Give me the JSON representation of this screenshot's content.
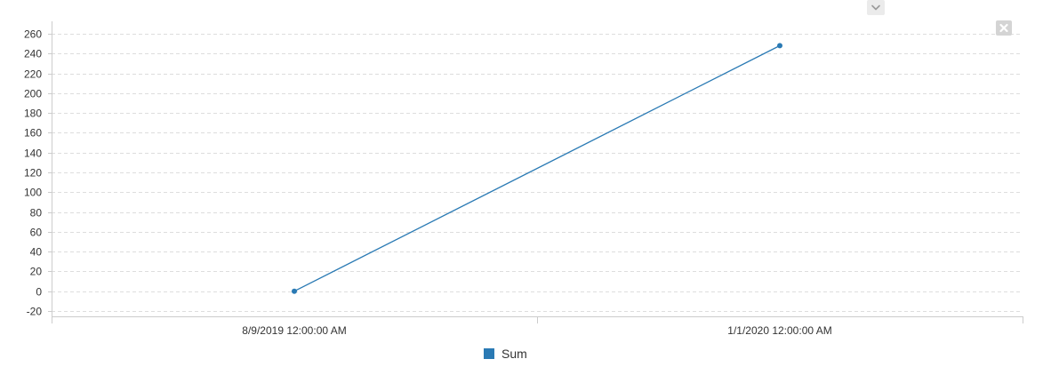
{
  "controls": {
    "collapse_icon": "chevron-down-icon",
    "close_icon": "close-icon"
  },
  "colors": {
    "series": "#2a7ab4",
    "grid": "#dddddd",
    "axis": "#cccccc",
    "text": "#333333",
    "button_bg": "#ebebeb"
  },
  "chart_data": {
    "type": "line",
    "title": "",
    "xlabel": "",
    "ylabel": "",
    "grid": true,
    "legend_position": "bottom-center",
    "categories": [
      "8/9/2019 12:00:00 AM",
      "1/1/2020 12:00:00 AM"
    ],
    "ylim": [
      -20,
      260
    ],
    "yticks": [
      -20,
      0,
      20,
      40,
      60,
      80,
      100,
      120,
      140,
      160,
      180,
      200,
      220,
      240,
      260
    ],
    "series": [
      {
        "name": "Sum",
        "color": "#2a7ab4",
        "values": [
          0,
          248
        ]
      }
    ]
  }
}
